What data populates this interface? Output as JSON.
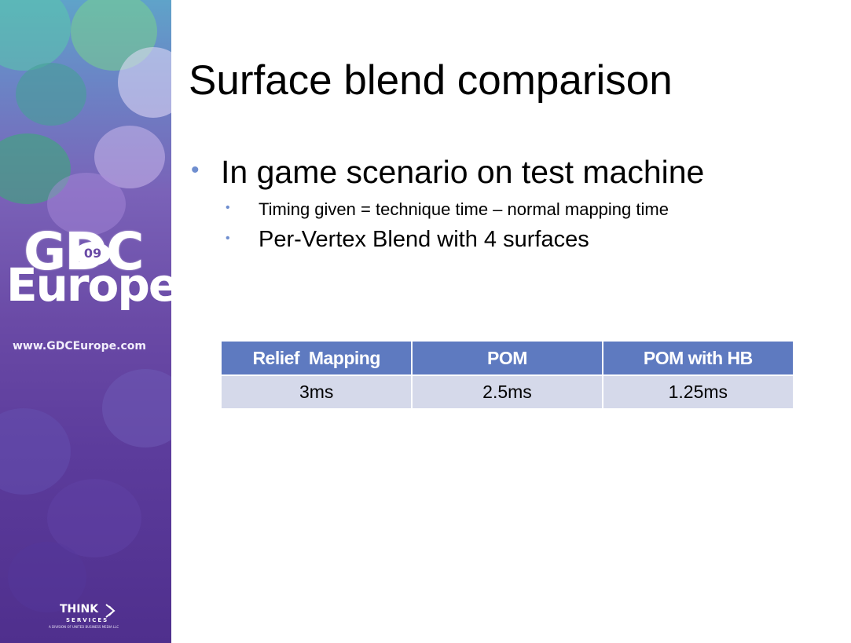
{
  "sidebar": {
    "logo": {
      "line1": "GDC",
      "badge": "09",
      "line2": "Europe"
    },
    "url": "www.GDCEurope.com",
    "footer_logo": {
      "line1": "THINK",
      "line2": "SERVICES",
      "tagline": "A DIVISION OF UNITED BUSINESS MEDIA LLC"
    }
  },
  "slide": {
    "title": "Surface blend comparison",
    "bullets": [
      {
        "text": "In game scenario on test machine",
        "level": 1
      },
      {
        "text": "Timing given = technique time – normal mapping time",
        "level": 2
      },
      {
        "text": "Per-Vertex Blend with 4 surfaces",
        "level": 2
      }
    ]
  },
  "table": {
    "headers": [
      "Relief  Mapping",
      "POM",
      "POM with HB"
    ],
    "rows": [
      [
        "3ms",
        "2.5ms",
        "1.25ms"
      ]
    ]
  },
  "colors": {
    "bullet": "#6f8ecf",
    "table_header_bg": "#5e7ac0",
    "table_cell_bg": "#d5d9ea",
    "sidebar_purple": "#6a4aa6"
  }
}
